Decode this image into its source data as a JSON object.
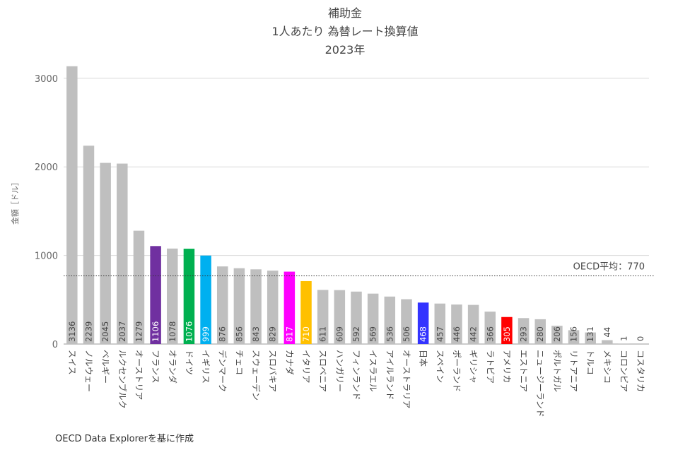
{
  "chart_data": {
    "type": "bar",
    "title_lines": [
      "補助金",
      "1人あたり 為替レート換算値",
      "2023年"
    ],
    "ylabel": "金額［ドル］",
    "ylim": [
      0,
      3150
    ],
    "yticks": [
      0,
      1000,
      2000,
      3000
    ],
    "grid": true,
    "categories": [
      "スイス",
      "ノルウェー",
      "ベルギー",
      "ルクセンブルク",
      "オーストリア",
      "フランス",
      "オランダ",
      "ドイツ",
      "イギリス",
      "デンマーク",
      "チェコ",
      "スウェーデン",
      "スロバキア",
      "カナダ",
      "イタリア",
      "スロベニア",
      "ハンガリー",
      "フィンランド",
      "イスラエル",
      "アイルランド",
      "オーストラリア",
      "日本",
      "スペイン",
      "ポーランド",
      "ギリシャ",
      "ラトビア",
      "アメリカ",
      "エストニア",
      "ニュージーランド",
      "ポルトガル",
      "リトアニア",
      "トルコ",
      "メキシコ",
      "コロンビア",
      "コスタリカ"
    ],
    "values": [
      3136,
      2239,
      2045,
      2037,
      1279,
      1106,
      1078,
      1076,
      999,
      876,
      856,
      843,
      829,
      817,
      710,
      611,
      609,
      592,
      569,
      536,
      506,
      468,
      457,
      446,
      442,
      366,
      305,
      293,
      280,
      206,
      156,
      131,
      44,
      1,
      0
    ],
    "default_color": "#bfbfbf",
    "highlight_colors": {
      "フランス": "#7030a0",
      "ドイツ": "#00b050",
      "イギリス": "#00b0f0",
      "カナダ": "#ff00ff",
      "イタリア": "#ffc000",
      "日本": "#3333ff",
      "アメリカ": "#ff0000"
    },
    "reference_line": {
      "value": 770,
      "label": "OECD平均：770"
    }
  },
  "source": "OECD Data Explorerを基に作成"
}
